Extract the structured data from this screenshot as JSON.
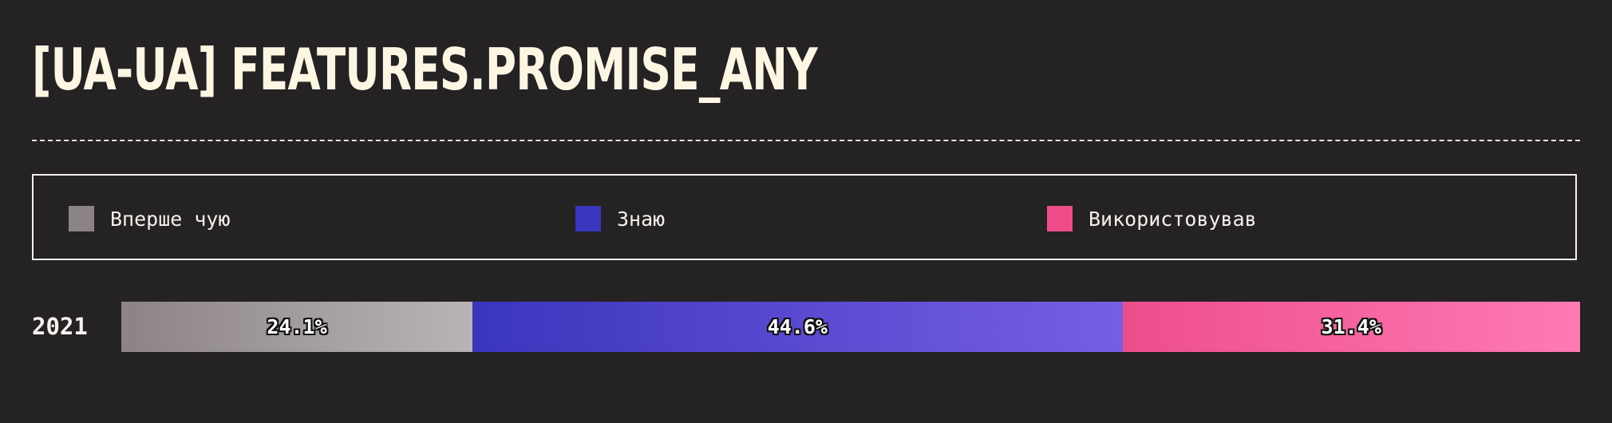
{
  "title": "[UA-UA] FEATURES.PROMISE_ANY",
  "colors": {
    "background": "#252224",
    "first_time": [
      "#8b8388",
      "#b9b3b6"
    ],
    "know": [
      "#3b35bd",
      "#765fe3"
    ],
    "used": [
      "#ed4e8b",
      "#ff7ab4"
    ]
  },
  "legend": [
    {
      "label": "Вперше чую",
      "color": "#8b8388"
    },
    {
      "label": "Знаю",
      "color": "#3a35bd"
    },
    {
      "label": "Використовував",
      "color": "#ee4d8a"
    }
  ],
  "chart_data": {
    "type": "bar",
    "orientation": "horizontal-stacked-100",
    "categories": [
      "2021"
    ],
    "series": [
      {
        "name": "Вперше чую",
        "values": [
          24.1
        ],
        "label": "24.1%"
      },
      {
        "name": "Знаю",
        "values": [
          44.6
        ],
        "label": "44.6%"
      },
      {
        "name": "Використовував",
        "values": [
          31.4
        ],
        "label": "31.4%"
      }
    ],
    "title": "[UA-UA] FEATURES.PROMISE_ANY",
    "xlabel": "",
    "ylabel": "",
    "xlim": [
      0,
      100
    ],
    "legend_position": "top"
  }
}
